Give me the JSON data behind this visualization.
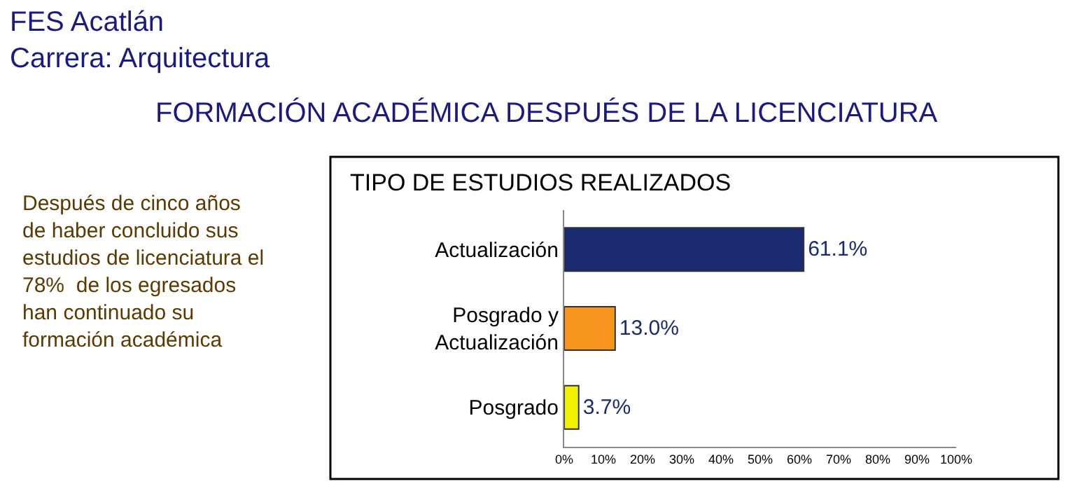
{
  "chart_data": {
    "type": "bar",
    "orientation": "horizontal",
    "title": "FES Acatlán\nCarrera: Arquitectura",
    "subtitle": "FORMACIÓN ACADÉMICA DESPUÉS DE LA LICENCIATURA",
    "xlabel": "TIPO DE ESTUDIOS REALIZADOS",
    "categories": [
      "Actualización",
      "Posgrado y\nActualización",
      "Posgrado"
    ],
    "values": [
      61.1,
      13.0,
      3.7
    ],
    "colors": [
      "#1a2a6e",
      "#f7941d",
      "#f2f200"
    ],
    "value_labels": [
      "61.1%",
      "13.0%",
      "3.7%"
    ],
    "xlim": [
      0,
      100
    ],
    "xticks": [
      {
        "value": 0,
        "label": "0%"
      },
      {
        "value": 10,
        "label": "10%"
      },
      {
        "value": 20,
        "label": "20%"
      },
      {
        "value": 30,
        "label": "30%"
      },
      {
        "value": 40,
        "label": "40%"
      },
      {
        "value": 50,
        "label": "50%"
      },
      {
        "value": 60,
        "label": "60%"
      },
      {
        "value": 70,
        "label": "70%"
      },
      {
        "value": 80,
        "label": "80%"
      },
      {
        "value": 90,
        "label": "90%"
      },
      {
        "value": 100,
        "label": "100%"
      }
    ],
    "annotations": [
      "Después de cinco años\nde haber concluido sus\nestudios de licenciatura el\n78%  de los egresados\nhan continuado su\nformación académica"
    ]
  }
}
